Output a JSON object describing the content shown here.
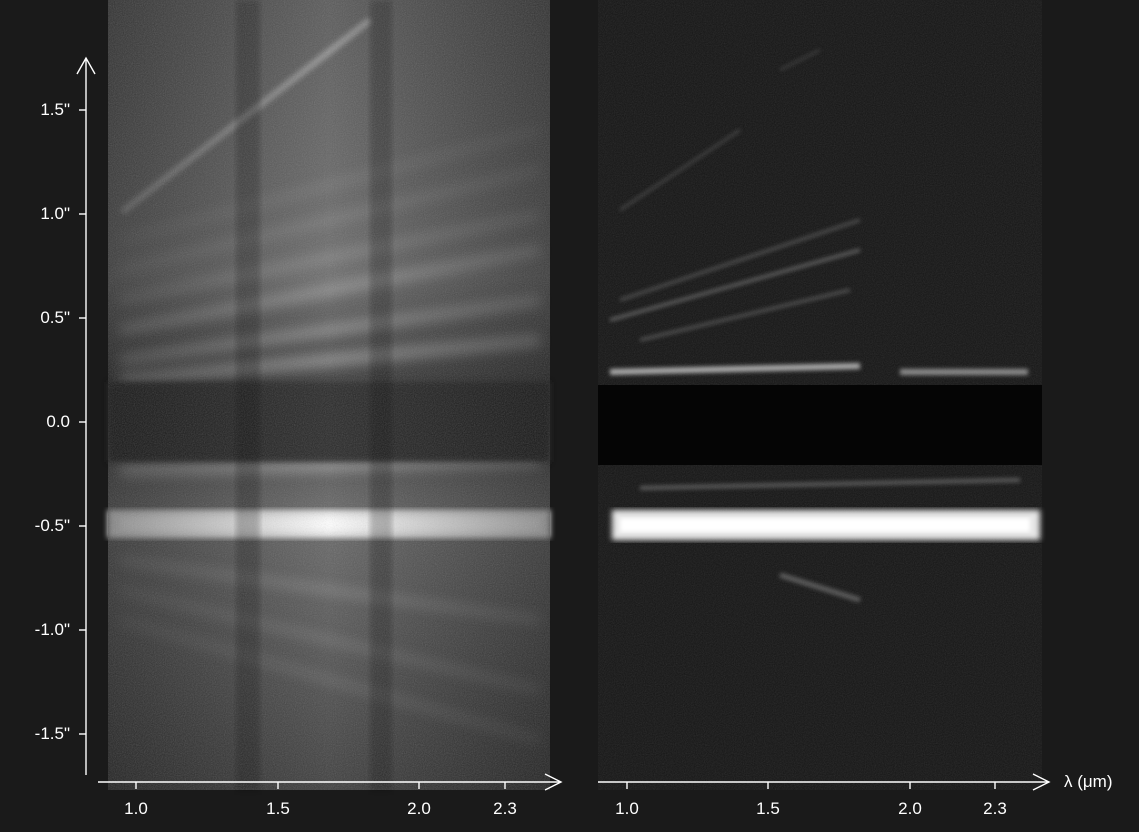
{
  "figure": {
    "panels": [
      {
        "name": "left",
        "description_kind": "spectrum-raw"
      },
      {
        "name": "right",
        "description_kind": "spectrum-deconvolved"
      }
    ],
    "y_axis": {
      "labels": [
        "1.5\"",
        "1.0\"",
        "0.5\"",
        "0.0",
        "-0.5\"",
        "-1.0\"",
        "-1.5\""
      ]
    },
    "x_axis_left": {
      "labels": [
        "1.0",
        "1.5",
        "2.0",
        "2.3"
      ]
    },
    "x_axis_right": {
      "labels": [
        "1.0",
        "1.5",
        "2.0",
        "2.3"
      ]
    },
    "x_axis_title": "λ (μm)"
  }
}
